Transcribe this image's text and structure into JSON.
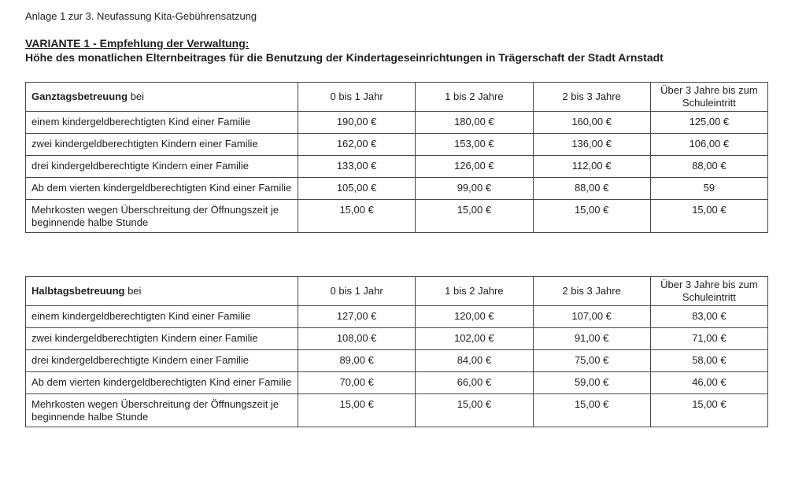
{
  "page": {
    "annotation_line": "Anlage 1 zur 3. Neufassung Kita-Gebührensatzung",
    "variant_heading": "VARIANTE 1 - Empfehlung der Verwaltung:",
    "subtitle": "Höhe des monatlichen Elternbeitrages für die Benutzung der Kindertageseinrichtungen in Trägerschaft der Stadt Arnstadt"
  },
  "colors": {
    "text": "#1f1f1f",
    "table_border": "#474747",
    "background": "#ffffff"
  },
  "tables": [
    {
      "name": "ganztagsbetreuung",
      "header": {
        "label_bold": "Ganztagsbetreuung",
        "label_rest": " bei",
        "columns": [
          "0 bis 1 Jahr",
          "1 bis 2 Jahre",
          "2 bis 3 Jahre",
          "Über 3 Jahre bis zum Schuleintritt"
        ]
      },
      "rows": [
        {
          "label": "einem kindergeldberechtigten Kind einer Familie",
          "values": [
            "190,00 €",
            "180,00 €",
            "160,00 €",
            "125,00 €"
          ]
        },
        {
          "label": "zwei kindergeldberechtigten Kindern einer Familie",
          "values": [
            "162,00 €",
            "153,00 €",
            "136,00 €",
            "106,00 €"
          ]
        },
        {
          "label": "drei kindergeldberechtigte Kindern einer Familie",
          "values": [
            "133,00 €",
            "126,00 €",
            "112,00 €",
            "88,00 €"
          ]
        },
        {
          "label": "Ab dem vierten kindergeldberechtigten Kind einer Familie",
          "values": [
            "105,00 €",
            "99,00 €",
            "88,00 €",
            "59"
          ]
        },
        {
          "label": "Mehrkosten wegen Überschreitung der Öffnungszeit je beginnende halbe Stunde",
          "values": [
            "15,00 €",
            "15,00 €",
            "15,00 €",
            "15,00 €"
          ]
        }
      ]
    },
    {
      "name": "halbtagsbetreuung",
      "header": {
        "label_bold": "Halbtagsbetreuung",
        "label_rest": " bei",
        "columns": [
          "0 bis 1 Jahr",
          "1 bis 2 Jahre",
          "2 bis 3 Jahre",
          "Über 3 Jahre bis zum Schuleintritt"
        ]
      },
      "rows": [
        {
          "label": "einem kindergeldberechtigten Kind einer Familie",
          "values": [
            "127,00 €",
            "120,00 €",
            "107,00 €",
            "83,00 €"
          ]
        },
        {
          "label": "zwei kindergeldberechtigten Kindern einer Familie",
          "values": [
            "108,00 €",
            "102,00 €",
            "91,00 €",
            "71,00 €"
          ]
        },
        {
          "label": "drei kindergeldberechtigte Kindern einer Familie",
          "values": [
            "89,00 €",
            "84,00 €",
            "75,00 €",
            "58,00 €"
          ]
        },
        {
          "label": "Ab dem vierten kindergeldberechtigten Kind einer Familie",
          "values": [
            "70,00 €",
            "66,00 €",
            "59,00 €",
            "46,00 €"
          ]
        },
        {
          "label": "Mehrkosten wegen Überschreitung der Öffnungszeit je beginnende halbe Stunde",
          "values": [
            "15,00 €",
            "15,00 €",
            "15,00 €",
            "15,00 €"
          ]
        }
      ]
    }
  ]
}
